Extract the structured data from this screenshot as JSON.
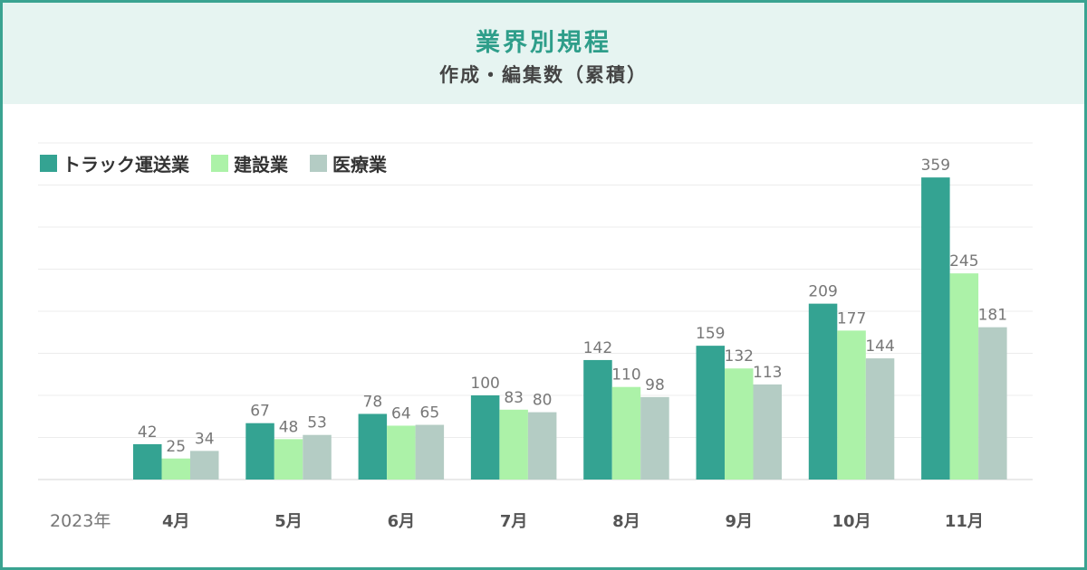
{
  "title": "業界別規程",
  "subtitle": "作成・編集数（累積）",
  "colors": {
    "frame": "#3aa391",
    "header_bg": "#e6f4f1",
    "title": "#2e9e8a"
  },
  "chart_data": {
    "type": "bar",
    "title": "業界別規程",
    "subtitle": "作成・編集数（累積）",
    "year_label": "2023年",
    "categories": [
      "4月",
      "5月",
      "6月",
      "7月",
      "8月",
      "9月",
      "10月",
      "11月"
    ],
    "series": [
      {
        "name": "トラック運送業",
        "color": "#34a392",
        "values": [
          42,
          67,
          78,
          100,
          142,
          159,
          209,
          359
        ]
      },
      {
        "name": "建設業",
        "color": "#acf2a8",
        "values": [
          25,
          48,
          64,
          83,
          110,
          132,
          177,
          245
        ]
      },
      {
        "name": "医療業",
        "color": "#b4ccc4",
        "values": [
          34,
          53,
          65,
          80,
          98,
          113,
          144,
          181
        ]
      }
    ],
    "ylim": [
      0,
      400
    ],
    "grid": true,
    "legend": "top-left",
    "data_labels": true
  }
}
